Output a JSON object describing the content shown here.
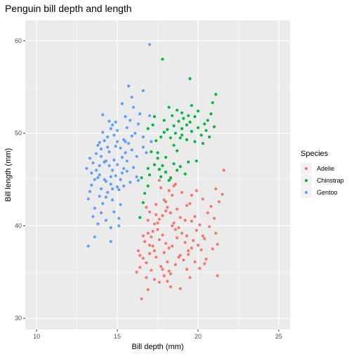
{
  "chart_data": {
    "type": "scatter",
    "title": "Penguin bill depth and length",
    "xlabel": "Bill depth (mm)",
    "ylabel": "Bill length (mm)",
    "xlim": [
      9.3,
      25.7
    ],
    "ylim": [
      28.8,
      62.2
    ],
    "xticks": [
      10,
      15,
      20,
      25
    ],
    "yticks": [
      30,
      40,
      50,
      60
    ],
    "grid": true,
    "background": "#ebebeb",
    "legend": {
      "title": "Species",
      "position": "right"
    },
    "series": [
      {
        "name": "Adelie",
        "color": "#f8766d",
        "points": [
          [
            16.5,
            32.1
          ],
          [
            16.9,
            33.1
          ],
          [
            16.2,
            35.0
          ],
          [
            16.4,
            35.5
          ],
          [
            16.8,
            36.0
          ],
          [
            16.6,
            36.5
          ],
          [
            17.0,
            37.0
          ],
          [
            16.3,
            37.3
          ],
          [
            17.2,
            37.8
          ],
          [
            16.7,
            38.3
          ],
          [
            17.1,
            38.8
          ],
          [
            16.9,
            39.2
          ],
          [
            17.5,
            39.6
          ],
          [
            17.3,
            40.2
          ],
          [
            17.6,
            40.7
          ],
          [
            17.8,
            41.1
          ],
          [
            17.0,
            41.5
          ],
          [
            18.1,
            42.0
          ],
          [
            17.4,
            42.3
          ],
          [
            17.9,
            42.8
          ],
          [
            18.4,
            43.3
          ],
          [
            18.2,
            43.8
          ],
          [
            17.7,
            44.1
          ],
          [
            18.6,
            44.5
          ],
          [
            18.3,
            41.4
          ],
          [
            18.9,
            40.9
          ],
          [
            18.5,
            40.3
          ],
          [
            18.8,
            39.8
          ],
          [
            19.0,
            39.2
          ],
          [
            18.7,
            38.7
          ],
          [
            19.2,
            38.2
          ],
          [
            18.4,
            37.8
          ],
          [
            19.4,
            37.3
          ],
          [
            18.9,
            36.8
          ],
          [
            19.1,
            36.3
          ],
          [
            18.6,
            35.8
          ],
          [
            19.3,
            35.3
          ],
          [
            18.3,
            34.8
          ],
          [
            19.5,
            34.4
          ],
          [
            18.1,
            34.0
          ],
          [
            19.6,
            40.5
          ],
          [
            19.8,
            41.0
          ],
          [
            19.9,
            39.5
          ],
          [
            20.1,
            40.1
          ],
          [
            20.3,
            38.9
          ],
          [
            19.7,
            38.4
          ],
          [
            20.0,
            37.9
          ],
          [
            20.2,
            37.4
          ],
          [
            19.4,
            36.9
          ],
          [
            20.5,
            36.4
          ],
          [
            20.6,
            41.4
          ],
          [
            20.8,
            42.1
          ],
          [
            21.0,
            40.8
          ],
          [
            20.7,
            39.9
          ],
          [
            21.1,
            39.2
          ],
          [
            20.4,
            38.6
          ],
          [
            21.2,
            38.0
          ],
          [
            20.9,
            37.5
          ],
          [
            21.3,
            42.6
          ],
          [
            21.5,
            43.4
          ],
          [
            21.1,
            44.0
          ],
          [
            21.6,
            46.0
          ],
          [
            21.2,
            34.6
          ],
          [
            20.3,
            42.9
          ],
          [
            19.6,
            43.3
          ],
          [
            19.0,
            43.6
          ],
          [
            18.3,
            45.1
          ],
          [
            17.6,
            44.9
          ],
          [
            19.3,
            42.2
          ],
          [
            18.0,
            41.6
          ],
          [
            17.4,
            41.2
          ],
          [
            16.9,
            40.6
          ],
          [
            17.2,
            39.4
          ],
          [
            17.8,
            39.0
          ],
          [
            17.6,
            38.5
          ],
          [
            18.0,
            38.1
          ],
          [
            18.2,
            37.6
          ],
          [
            17.9,
            37.1
          ],
          [
            17.4,
            36.6
          ],
          [
            18.1,
            36.1
          ],
          [
            17.7,
            35.6
          ],
          [
            17.1,
            35.2
          ],
          [
            17.9,
            34.6
          ],
          [
            17.6,
            33.9
          ],
          [
            18.3,
            33.4
          ],
          [
            18.9,
            33.2
          ],
          [
            19.8,
            36.1
          ],
          [
            20.1,
            35.4
          ],
          [
            17.3,
            34.2
          ],
          [
            16.8,
            34.4
          ],
          [
            18.6,
            39.6
          ],
          [
            18.4,
            40.0
          ],
          [
            19.2,
            40.6
          ],
          [
            17.5,
            40.3
          ],
          [
            18.7,
            41.8
          ],
          [
            19.5,
            42.4
          ],
          [
            18.0,
            42.6
          ],
          [
            16.8,
            42.0
          ],
          [
            19.9,
            43.8
          ],
          [
            18.5,
            44.3
          ],
          [
            17.3,
            37.3
          ],
          [
            18.8,
            36.6
          ],
          [
            19.6,
            37.6
          ],
          [
            16.6,
            38.9
          ],
          [
            17.0,
            37.9
          ],
          [
            19.3,
            38.9
          ],
          [
            18.2,
            35.1
          ],
          [
            20.4,
            35.9
          ],
          [
            16.4,
            36.8
          ],
          [
            17.8,
            35.3
          ]
        ]
      },
      {
        "name": "Chinstrap",
        "color": "#00ba38",
        "points": [
          [
            16.4,
            40.9
          ],
          [
            16.6,
            42.5
          ],
          [
            16.7,
            43.5
          ],
          [
            17.0,
            45.5
          ],
          [
            16.9,
            46.2
          ],
          [
            16.5,
            45.2
          ],
          [
            17.3,
            46.6
          ],
          [
            17.5,
            47.3
          ],
          [
            17.1,
            48.0
          ],
          [
            17.6,
            46.1
          ],
          [
            17.8,
            46.5
          ],
          [
            18.0,
            45.8
          ],
          [
            18.3,
            45.2
          ],
          [
            18.5,
            46.7
          ],
          [
            18.7,
            46.0
          ],
          [
            18.9,
            46.4
          ],
          [
            19.2,
            45.6
          ],
          [
            19.4,
            46.9
          ],
          [
            17.4,
            49.2
          ],
          [
            17.7,
            49.6
          ],
          [
            17.9,
            50.1
          ],
          [
            18.1,
            50.4
          ],
          [
            18.3,
            49.5
          ],
          [
            18.5,
            50.8
          ],
          [
            18.6,
            50.0
          ],
          [
            18.8,
            51.3
          ],
          [
            19.0,
            50.5
          ],
          [
            19.1,
            51.6
          ],
          [
            19.3,
            50.9
          ],
          [
            19.5,
            51.2
          ],
          [
            19.6,
            50.2
          ],
          [
            19.8,
            51.8
          ],
          [
            20.0,
            50.6
          ],
          [
            20.2,
            49.8
          ],
          [
            20.4,
            51.0
          ],
          [
            20.5,
            50.3
          ],
          [
            20.7,
            49.6
          ],
          [
            20.8,
            52.1
          ],
          [
            20.9,
            53.3
          ],
          [
            19.0,
            52.2
          ],
          [
            18.7,
            52.5
          ],
          [
            18.2,
            52.8
          ],
          [
            19.6,
            53.0
          ],
          [
            20.0,
            52.4
          ],
          [
            17.9,
            51.4
          ],
          [
            18.4,
            51.9
          ],
          [
            19.3,
            49.3
          ],
          [
            17.2,
            50.9
          ],
          [
            20.3,
            48.9
          ],
          [
            21.1,
            54.2
          ],
          [
            19.5,
            55.9
          ],
          [
            17.8,
            58.0
          ],
          [
            16.9,
            50.5
          ],
          [
            19.8,
            49.1
          ],
          [
            17.5,
            47.9
          ],
          [
            18.0,
            47.4
          ],
          [
            18.7,
            48.1
          ],
          [
            19.9,
            47.0
          ],
          [
            17.7,
            45.3
          ],
          [
            18.2,
            44.9
          ],
          [
            16.9,
            44.3
          ],
          [
            19.0,
            49.8
          ],
          [
            18.5,
            48.7
          ],
          [
            20.6,
            51.4
          ],
          [
            21.0,
            50.7
          ],
          [
            19.4,
            51.9
          ],
          [
            18.9,
            49.5
          ],
          [
            17.3,
            51.8
          ]
        ]
      },
      {
        "name": "Gentoo",
        "color": "#619cff",
        "points": [
          [
            13.2,
            42.9
          ],
          [
            13.4,
            44.4
          ],
          [
            13.6,
            45.0
          ],
          [
            13.9,
            45.5
          ],
          [
            13.1,
            46.2
          ],
          [
            13.5,
            46.8
          ],
          [
            13.3,
            47.3
          ],
          [
            13.7,
            47.8
          ],
          [
            14.0,
            48.3
          ],
          [
            13.8,
            48.7
          ],
          [
            14.2,
            49.2
          ],
          [
            14.4,
            49.6
          ],
          [
            14.1,
            50.1
          ],
          [
            14.6,
            50.5
          ],
          [
            14.8,
            49.8
          ],
          [
            15.0,
            50.3
          ],
          [
            14.3,
            47.0
          ],
          [
            14.5,
            46.5
          ],
          [
            14.7,
            46.0
          ],
          [
            14.9,
            45.4
          ],
          [
            14.2,
            45.0
          ],
          [
            14.6,
            44.5
          ],
          [
            14.0,
            44.0
          ],
          [
            14.4,
            43.6
          ],
          [
            13.9,
            43.2
          ],
          [
            14.7,
            42.8
          ],
          [
            14.1,
            42.4
          ],
          [
            13.6,
            41.9
          ],
          [
            14.8,
            41.5
          ],
          [
            13.5,
            41.0
          ],
          [
            14.3,
            40.6
          ],
          [
            13.8,
            40.2
          ],
          [
            14.6,
            39.8
          ],
          [
            15.1,
            40.0
          ],
          [
            15.3,
            47.4
          ],
          [
            15.5,
            47.9
          ],
          [
            15.2,
            48.4
          ],
          [
            15.7,
            48.9
          ],
          [
            15.4,
            49.3
          ],
          [
            15.9,
            49.7
          ],
          [
            16.1,
            50.0
          ],
          [
            15.6,
            50.6
          ],
          [
            16.3,
            51.0
          ],
          [
            15.8,
            51.4
          ],
          [
            16.0,
            46.3
          ],
          [
            15.6,
            45.9
          ],
          [
            16.2,
            45.3
          ],
          [
            15.2,
            45.0
          ],
          [
            15.8,
            44.7
          ],
          [
            15.0,
            44.2
          ],
          [
            14.5,
            48.0
          ],
          [
            14.0,
            47.5
          ],
          [
            14.8,
            47.1
          ],
          [
            15.0,
            46.6
          ],
          [
            15.4,
            46.2
          ],
          [
            15.1,
            43.9
          ],
          [
            13.7,
            46.0
          ],
          [
            13.9,
            46.5
          ],
          [
            14.2,
            46.9
          ],
          [
            14.6,
            45.3
          ],
          [
            15.3,
            45.7
          ],
          [
            14.4,
            48.5
          ],
          [
            16.0,
            52.8
          ],
          [
            15.3,
            53.2
          ],
          [
            15.9,
            53.9
          ],
          [
            15.7,
            55.1
          ],
          [
            16.4,
            52.1
          ],
          [
            15.5,
            51.8
          ],
          [
            16.6,
            49.6
          ],
          [
            14.9,
            51.2
          ],
          [
            14.1,
            52.0
          ],
          [
            17.0,
            59.6
          ],
          [
            16.6,
            54.6
          ],
          [
            14.3,
            43.1
          ],
          [
            13.3,
            43.7
          ],
          [
            15.2,
            42.3
          ],
          [
            14.0,
            41.4
          ],
          [
            13.6,
            38.8
          ],
          [
            13.2,
            37.8
          ],
          [
            14.6,
            38.3
          ],
          [
            15.1,
            40.8
          ],
          [
            14.7,
            44.0
          ],
          [
            14.3,
            44.8
          ],
          [
            13.8,
            45.2
          ],
          [
            15.4,
            44.3
          ],
          [
            16.3,
            44.9
          ],
          [
            15.9,
            48.2
          ],
          [
            15.5,
            49.1
          ],
          [
            16.2,
            47.5
          ],
          [
            16.8,
            47.9
          ],
          [
            17.1,
            49.1
          ],
          [
            17.0,
            51.9
          ],
          [
            16.6,
            48.5
          ],
          [
            14.9,
            48.6
          ],
          [
            15.6,
            47.0
          ],
          [
            15.0,
            49.1
          ],
          [
            14.7,
            50.9
          ],
          [
            14.5,
            51.3
          ],
          [
            13.9,
            49.0
          ],
          [
            13.4,
            45.7
          ]
        ]
      }
    ]
  }
}
